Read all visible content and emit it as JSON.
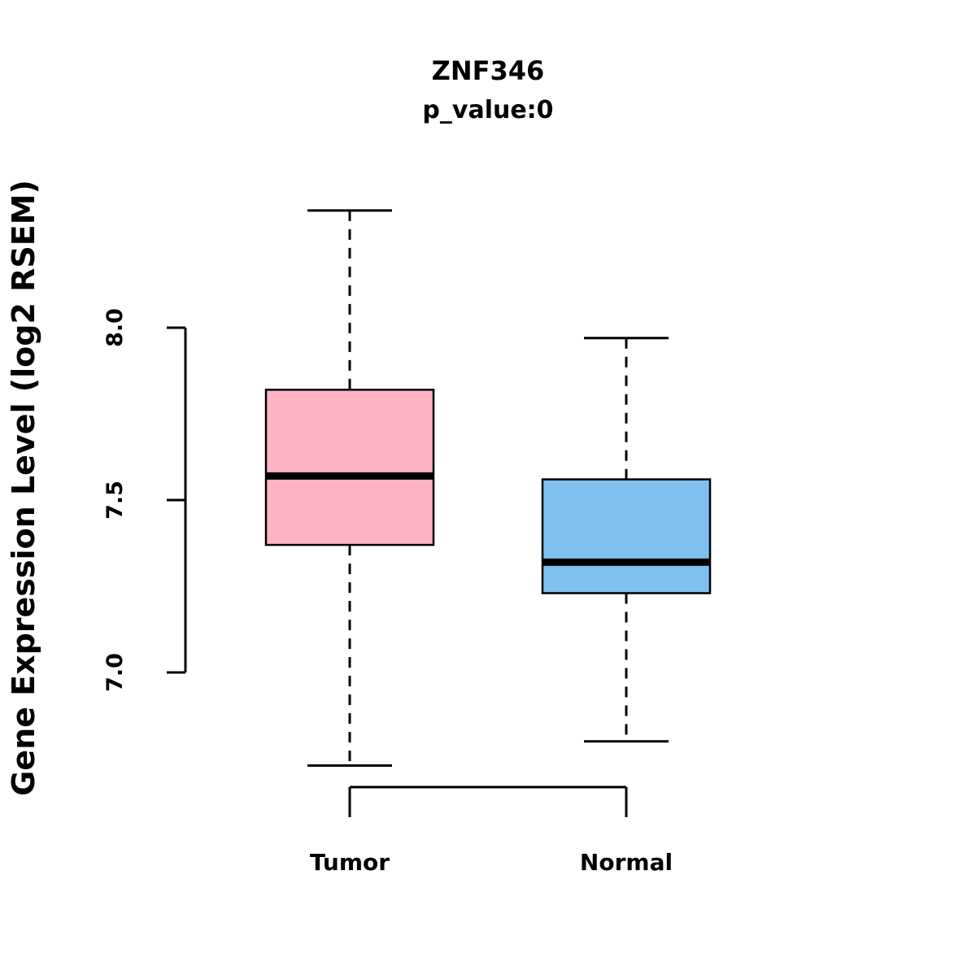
{
  "chart_data": {
    "type": "boxplot",
    "title": "ZNF346",
    "subtitle": "p_value:0",
    "ylabel": "Gene Expression Level (log2 RSEM)",
    "xlabel": "",
    "ylim": [
      6.6,
      8.4
    ],
    "grid": false,
    "yticks": [
      {
        "value": 8.0,
        "label": "8.0"
      },
      {
        "value": 7.5,
        "label": "7.5"
      },
      {
        "value": 7.0,
        "label": "7.0"
      }
    ],
    "groups": [
      {
        "name": "Tumor",
        "color": "#FFB3C4",
        "stroke_color": "#000000",
        "whisker_low": 6.73,
        "q1": 7.37,
        "median": 7.57,
        "q3": 7.82,
        "whisker_high": 8.34
      },
      {
        "name": "Normal",
        "color": "#7EC0EE",
        "stroke_color": "#000000",
        "whisker_low": 6.8,
        "q1": 7.23,
        "median": 7.32,
        "q3": 7.56,
        "whisker_high": 7.97
      }
    ]
  }
}
